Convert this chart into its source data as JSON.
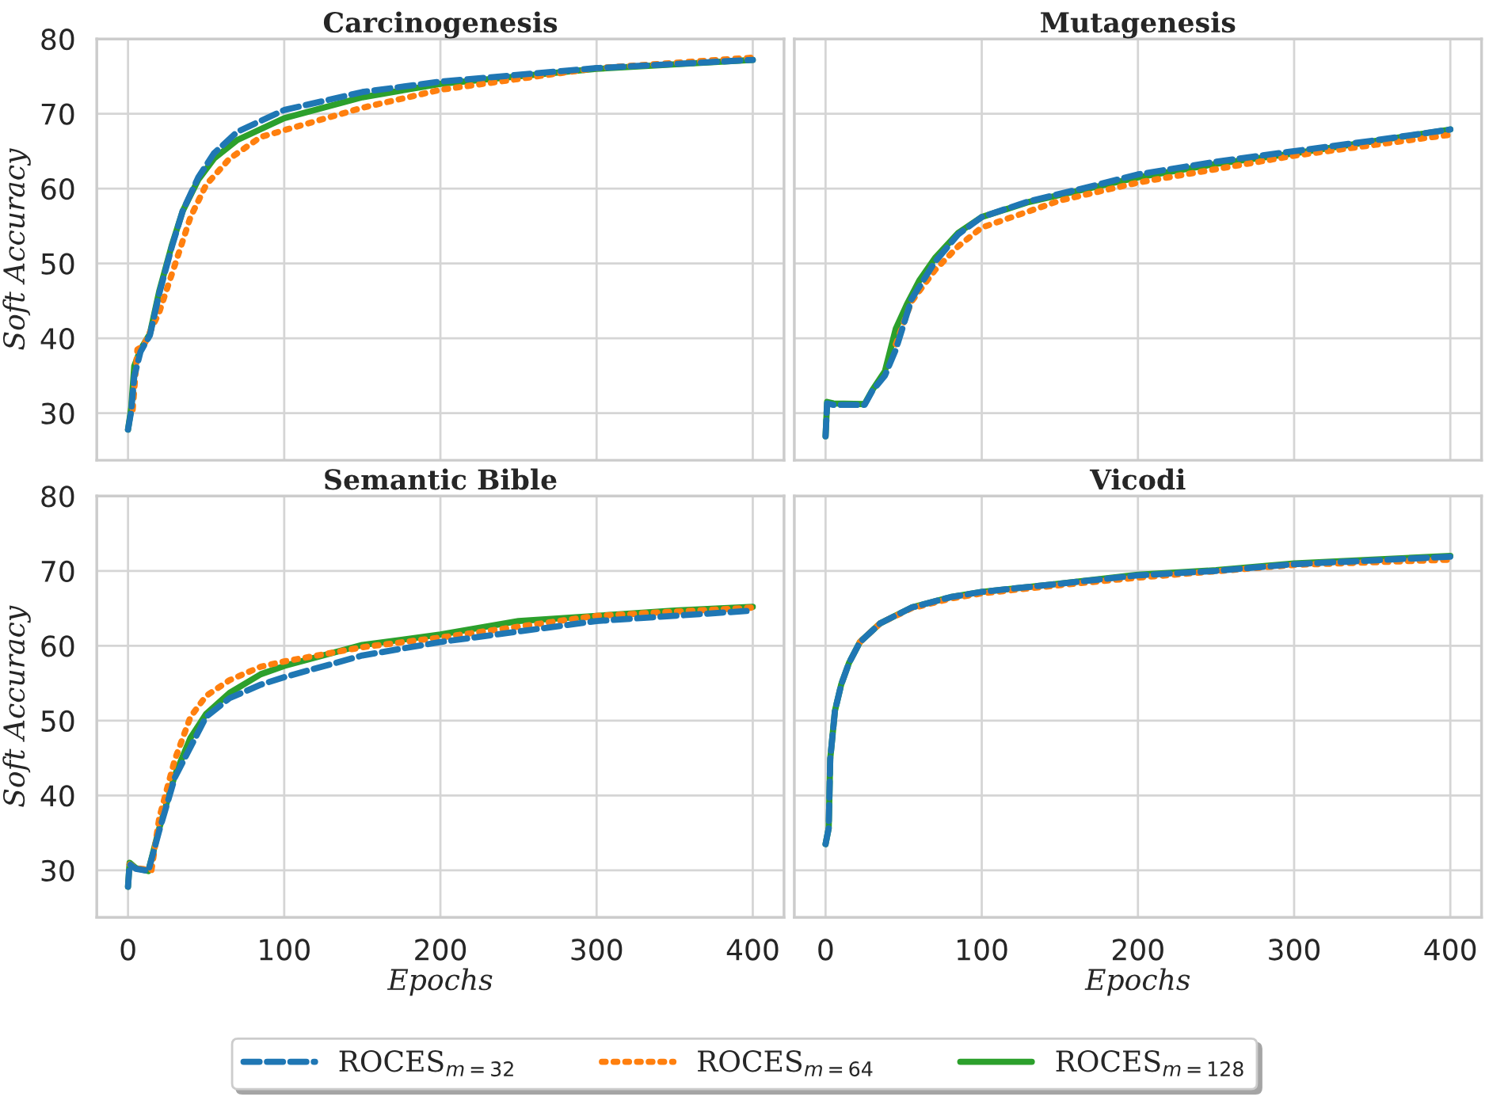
{
  "chart_data": [
    {
      "type": "line",
      "title": "Carcinogenesis",
      "ylabel": "Soft Accuracy",
      "xlim": [
        -20,
        420
      ],
      "ylim": [
        23.7,
        80
      ],
      "xticks": [
        0,
        100,
        200,
        300,
        400
      ],
      "yticks": [
        30,
        40,
        50,
        60,
        70,
        80
      ],
      "tick_labels": "y",
      "grid": true,
      "legend": false,
      "series": [
        {
          "color": "#1f77b4",
          "line_style": "dashed",
          "x": [
            0,
            2,
            4,
            8,
            14,
            20,
            28,
            35,
            45,
            55,
            70,
            100,
            150,
            200,
            300,
            400
          ],
          "values": [
            27.8,
            30.2,
            34.9,
            38.2,
            40.4,
            46.0,
            52.2,
            57.0,
            61.5,
            64.7,
            67.6,
            70.5,
            72.9,
            74.3,
            76.1,
            77.2
          ]
        },
        {
          "color": "#ff7f0e",
          "line_style": "dotted",
          "x": [
            3,
            6,
            10,
            20,
            30,
            40,
            50,
            65,
            85,
            100,
            150,
            200,
            300,
            400
          ],
          "values": [
            30.5,
            38.5,
            39.0,
            43.5,
            49.8,
            56.2,
            60.5,
            64.0,
            66.9,
            67.8,
            70.8,
            73.2,
            76.1,
            77.5
          ]
        },
        {
          "color": "#2ca02c",
          "line_style": "solid",
          "x": [
            0,
            2,
            4,
            8,
            14,
            20,
            28,
            35,
            45,
            55,
            70,
            100,
            150,
            200,
            300,
            400
          ],
          "values": [
            27.8,
            30.6,
            36.3,
            38.5,
            40.6,
            46.3,
            52.4,
            57.0,
            61.2,
            64.0,
            66.5,
            69.4,
            72.2,
            74.0,
            76.0,
            77.2
          ]
        }
      ]
    },
    {
      "type": "line",
      "title": "Mutagenesis",
      "xlim": [
        -20,
        420
      ],
      "ylim": [
        23.7,
        80
      ],
      "xticks": [
        0,
        100,
        200,
        300,
        400
      ],
      "yticks": [
        30,
        40,
        50,
        60,
        70,
        80
      ],
      "tick_labels": false,
      "grid": true,
      "legend": false,
      "series": [
        {
          "color": "#1f77b4",
          "line_style": "dashed",
          "x": [
            0,
            1,
            5,
            25,
            30,
            38,
            45,
            55,
            70,
            85,
            100,
            130,
            170,
            200,
            250,
            300,
            350,
            400
          ],
          "values": [
            26.9,
            31.3,
            31.1,
            31.1,
            33.0,
            35.0,
            38.5,
            45.2,
            50.2,
            53.9,
            56.2,
            58.3,
            60.3,
            61.9,
            63.6,
            65.0,
            66.4,
            67.9
          ]
        },
        {
          "color": "#ff7f0e",
          "line_style": "dotted",
          "x": [
            45,
            55,
            70,
            85,
            100,
            150,
            200,
            300,
            400
          ],
          "values": [
            39.2,
            44.9,
            49.1,
            52.3,
            54.8,
            58.4,
            60.8,
            64.4,
            67.2
          ]
        },
        {
          "color": "#2ca02c",
          "line_style": "solid",
          "x": [
            0,
            1,
            5,
            25,
            30,
            38,
            45,
            52,
            60,
            70,
            85,
            100,
            130,
            170,
            200,
            250,
            300,
            350,
            400
          ],
          "values": [
            26.9,
            31.5,
            31.3,
            31.2,
            33.1,
            35.6,
            41.3,
            44.5,
            47.7,
            50.7,
            54.1,
            56.2,
            58.2,
            60.1,
            61.5,
            63.3,
            64.7,
            66.3,
            67.9
          ]
        }
      ]
    },
    {
      "type": "line",
      "title": "Semantic Bible",
      "xlabel": "Epochs",
      "ylabel": "Soft Accuracy",
      "xlim": [
        -20,
        420
      ],
      "ylim": [
        23.7,
        80
      ],
      "xticks": [
        0,
        100,
        200,
        300,
        400
      ],
      "yticks": [
        30,
        40,
        50,
        60,
        70,
        80
      ],
      "grid": true,
      "legend": false,
      "series": [
        {
          "color": "#1f77b4",
          "line_style": "dashed",
          "x": [
            0,
            1,
            5,
            13,
            20,
            30,
            50,
            65,
            85,
            100,
            150,
            200,
            300,
            400
          ],
          "values": [
            27.8,
            30.8,
            30.2,
            29.9,
            35.3,
            42.4,
            50.5,
            53.0,
            54.8,
            55.8,
            58.7,
            60.5,
            63.3,
            64.7
          ]
        },
        {
          "color": "#ff7f0e",
          "line_style": "dotted",
          "x": [
            1,
            5,
            15,
            20,
            30,
            40,
            50,
            65,
            85,
            100,
            150,
            200,
            300,
            400
          ],
          "values": [
            30.8,
            30.3,
            30.0,
            37.0,
            44.8,
            50.5,
            53.3,
            55.4,
            57.2,
            57.9,
            59.8,
            61.1,
            64.0,
            65.1
          ]
        },
        {
          "color": "#2ca02c",
          "line_style": "solid",
          "x": [
            0,
            1,
            5,
            13,
            20,
            30,
            40,
            50,
            65,
            85,
            100,
            150,
            200,
            250,
            300,
            350,
            400
          ],
          "values": [
            27.8,
            31.0,
            30.3,
            29.9,
            35.6,
            42.7,
            47.7,
            50.9,
            53.7,
            56.2,
            57.3,
            60.1,
            61.5,
            63.3,
            64.0,
            64.7,
            65.2
          ]
        }
      ]
    },
    {
      "type": "line",
      "title": "Vicodi",
      "xlabel": "Epochs",
      "xlim": [
        -20,
        420
      ],
      "ylim": [
        23.7,
        80
      ],
      "xticks": [
        0,
        100,
        200,
        300,
        400
      ],
      "yticks": [
        30,
        40,
        50,
        60,
        70,
        80
      ],
      "tick_labels": "x",
      "grid": true,
      "legend": "bottom",
      "series": [
        {
          "name": "ROCES$_{m=32}$",
          "color": "#1f77b4",
          "line_style": "dashed",
          "x": [
            0,
            2,
            3,
            6,
            10,
            15,
            22,
            35,
            55,
            80,
            100,
            150,
            200,
            250,
            300,
            350,
            400
          ],
          "values": [
            33.5,
            35.6,
            44.9,
            51.3,
            54.8,
            57.7,
            60.5,
            63.0,
            65.1,
            66.5,
            67.2,
            68.3,
            69.4,
            70.0,
            70.9,
            71.4,
            71.9
          ]
        },
        {
          "name": "ROCES$_{m=64}$",
          "color": "#ff7f0e",
          "line_style": "dotted",
          "x": [
            22,
            35,
            55,
            80,
            100,
            150,
            200,
            300,
            400
          ],
          "values": [
            60.5,
            63.0,
            65.0,
            66.3,
            67.0,
            68.1,
            69.1,
            70.8,
            71.5
          ]
        },
        {
          "name": "ROCES$_{m=128}$",
          "color": "#2ca02c",
          "line_style": "solid",
          "x": [
            0,
            2,
            3,
            6,
            10,
            15,
            22,
            35,
            55,
            80,
            100,
            150,
            200,
            250,
            300,
            350,
            400
          ],
          "values": [
            33.5,
            35.6,
            44.9,
            51.3,
            54.8,
            57.7,
            60.5,
            63.0,
            65.1,
            66.5,
            67.2,
            68.3,
            69.5,
            70.1,
            71.0,
            71.5,
            72.0
          ]
        }
      ]
    }
  ]
}
